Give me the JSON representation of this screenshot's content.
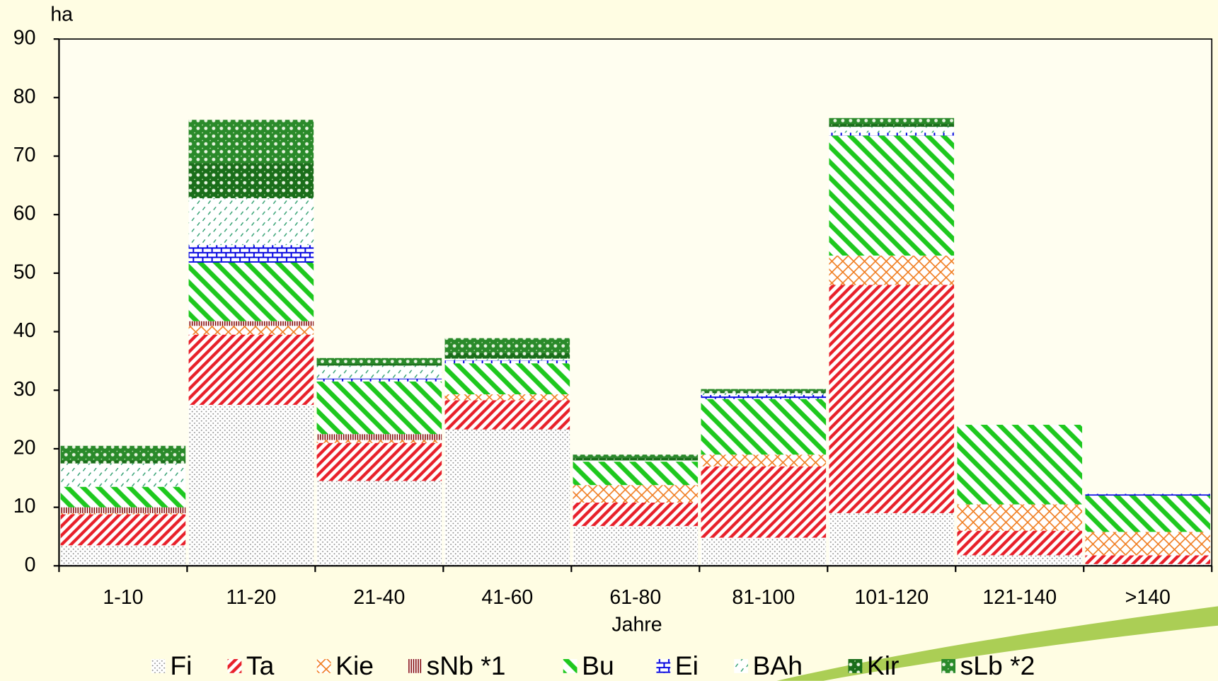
{
  "chart_data": {
    "type": "stacked_bar",
    "y_label": "ha",
    "x_label": "Jahre",
    "categories": [
      "1-10",
      "11-20",
      "21-40",
      "41-60",
      "61-80",
      "81-100",
      "101-120",
      "121-140",
      ">140"
    ],
    "ylim": [
      0,
      90
    ],
    "yticks": [
      0,
      10,
      20,
      30,
      40,
      50,
      60,
      70,
      80,
      90
    ],
    "series": [
      {
        "name": "Fi",
        "color": "#8c8c8c",
        "values": [
          3.5,
          27.5,
          14.5,
          23.3,
          6.8,
          4.8,
          9.0,
          1.8,
          0.3
        ]
      },
      {
        "name": "Ta",
        "color": "#e8202a",
        "values": [
          5.3,
          12.0,
          6.5,
          5.0,
          4.0,
          12.2,
          39.0,
          4.2,
          1.5
        ]
      },
      {
        "name": "Kie",
        "color": "#f07d20",
        "values": [
          0.2,
          1.5,
          0.5,
          1.0,
          3.0,
          2.0,
          5.0,
          4.5,
          4.0
        ]
      },
      {
        "name": "sNb *1",
        "color": "#800000",
        "values": [
          1.0,
          0.8,
          1.0,
          0,
          0,
          0,
          0,
          0,
          0
        ]
      },
      {
        "name": "Bu",
        "color": "#1ec81e",
        "values": [
          3.5,
          10.0,
          9.0,
          5.3,
          4.0,
          9.5,
          20.5,
          13.6,
          6.2
        ]
      },
      {
        "name": "Ei",
        "color": "#0000e0",
        "values": [
          0,
          3.0,
          0.5,
          0.5,
          0,
          0.7,
          0.5,
          0,
          0.3
        ]
      },
      {
        "name": "BAh",
        "color": "#2e9e6e",
        "values": [
          4.0,
          8.0,
          2.2,
          0.3,
          0.2,
          0.3,
          1.0,
          0,
          0
        ]
      },
      {
        "name": "Kir",
        "color": "#1a6e1a",
        "values": [
          0.5,
          6.0,
          0.3,
          1.0,
          0.5,
          0.3,
          0.5,
          0,
          0
        ]
      },
      {
        "name": "sLb *2",
        "color": "#2a8a2a",
        "values": [
          2.5,
          7.4,
          1.0,
          2.5,
          0.5,
          0.4,
          1.0,
          0,
          0
        ]
      }
    ]
  }
}
